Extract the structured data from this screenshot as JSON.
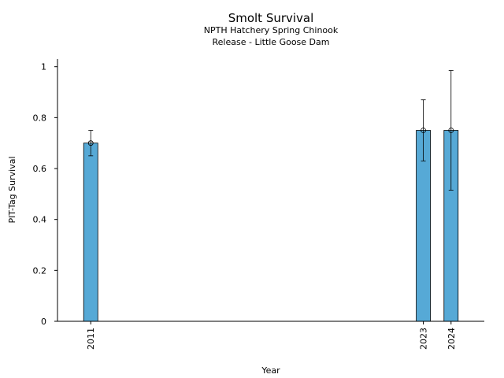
{
  "chart_data": {
    "type": "bar",
    "title": "Smolt Survival",
    "subtitle": [
      "NPTH Hatchery Spring Chinook",
      "Release - Little Goose Dam"
    ],
    "xlabel": "Year",
    "ylabel": "PIT-Tag Survival",
    "x": [
      2011,
      2023,
      2024
    ],
    "x_tick_labels": [
      "2011",
      "2023",
      "2024"
    ],
    "values": [
      0.7,
      0.75,
      0.75
    ],
    "error_low": [
      0.65,
      0.63,
      0.515
    ],
    "error_high": [
      0.75,
      0.87,
      0.985
    ],
    "xlim": [
      2009.8,
      2025.2
    ],
    "ylim": [
      0,
      1.03
    ],
    "y_ticks": [
      0,
      0.2,
      0.4,
      0.6,
      0.8,
      1
    ],
    "y_tick_labels": [
      "0",
      "0.2",
      "0.4",
      "0.6",
      "0.8",
      "1"
    ],
    "bar_color": "#56a9d6",
    "grid": false,
    "legend": "none"
  }
}
